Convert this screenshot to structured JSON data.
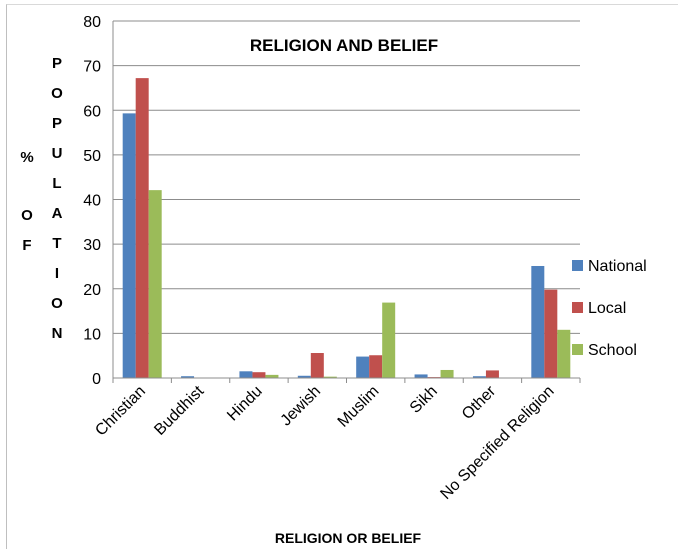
{
  "chart_data": {
    "type": "bar",
    "title": "RELIGION AND BELIEF",
    "xlabel": "RELIGION OR BELIEF",
    "ylabel": "% OF POPULATION",
    "ylim": [
      0,
      80
    ],
    "yticks": [
      0,
      10,
      20,
      30,
      40,
      50,
      60,
      70,
      80
    ],
    "grid": true,
    "legend_position": "right",
    "categories": [
      "Christian",
      "Buddhist",
      "Hindu",
      "Jewish",
      "Muslim",
      "Sikh",
      "Other",
      "No Specified Religion"
    ],
    "series": [
      {
        "name": "National",
        "color": "#4f81bd",
        "values": [
          59.3,
          0.4,
          1.5,
          0.5,
          4.8,
          0.8,
          0.4,
          25.1
        ]
      },
      {
        "name": "Local",
        "color": "#c0504d",
        "values": [
          67.2,
          0.1,
          1.3,
          5.6,
          5.1,
          0.2,
          1.7,
          19.8
        ]
      },
      {
        "name": "School",
        "color": "#9bbb59",
        "values": [
          42.1,
          0.0,
          0.7,
          0.3,
          16.9,
          1.8,
          0.1,
          10.8
        ]
      }
    ]
  }
}
